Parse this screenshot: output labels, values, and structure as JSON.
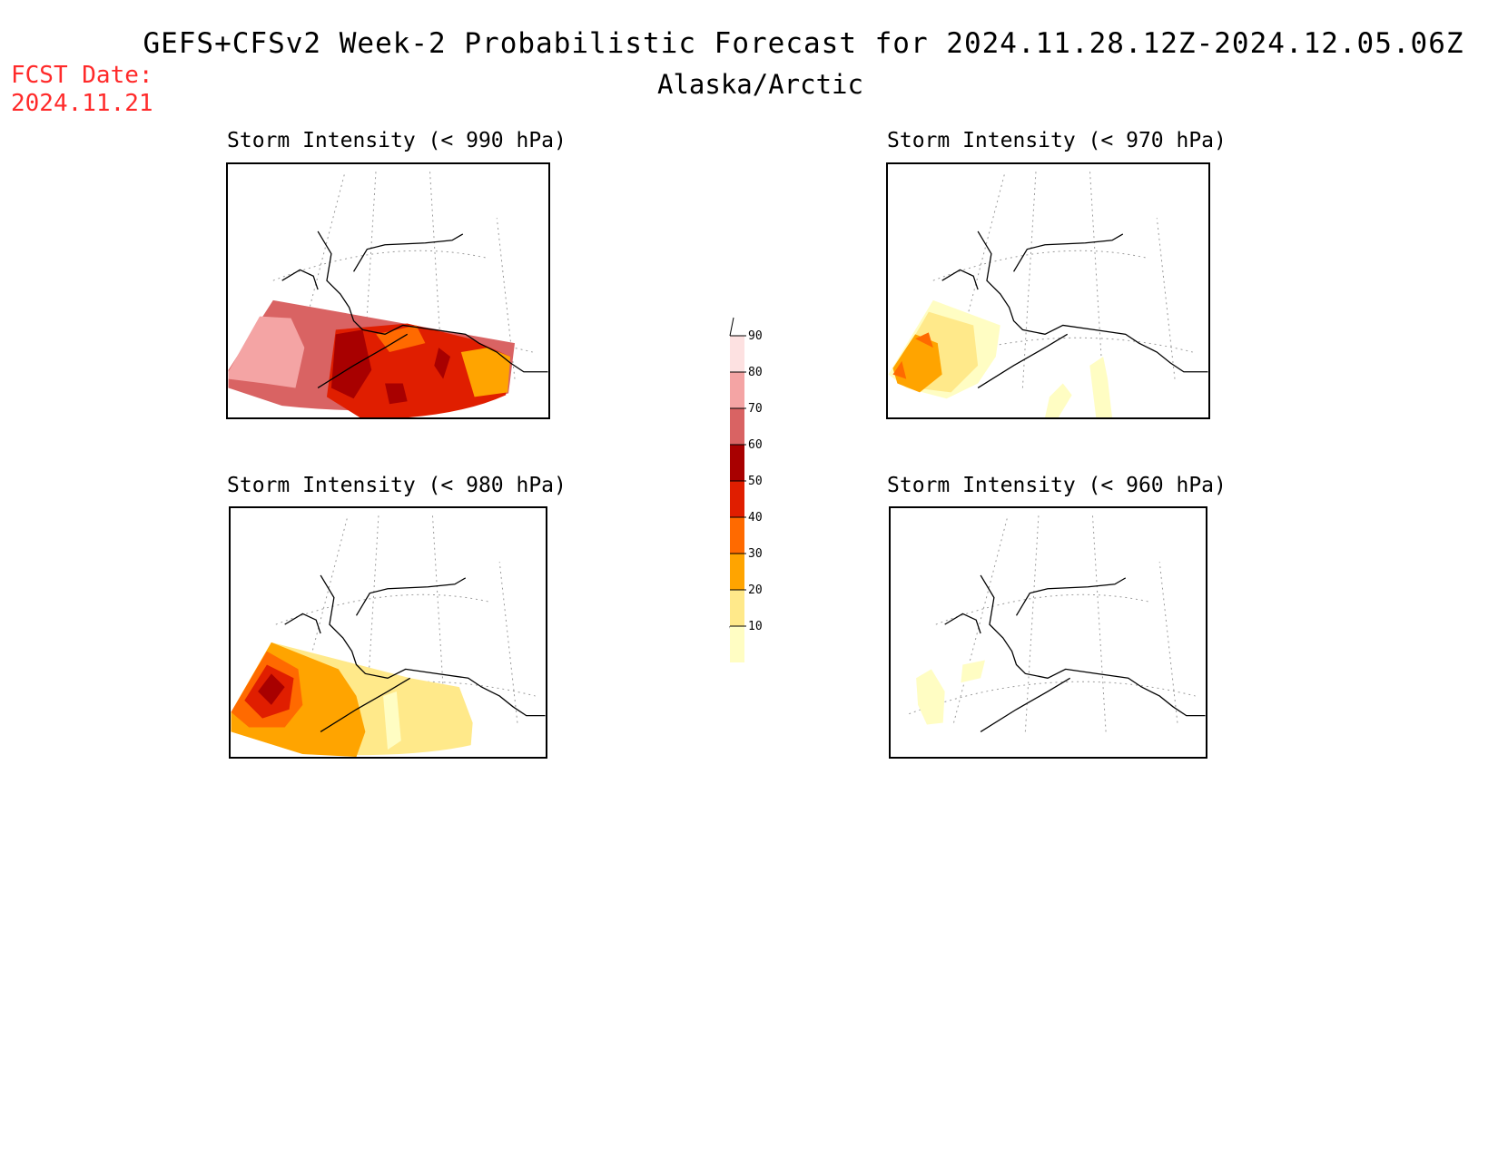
{
  "header": {
    "title": "GEFS+CFSv2 Week-2 Probabilistic Forecast for 2024.11.28.12Z-2024.12.05.06Z",
    "subtitle": "Alaska/Arctic",
    "fcst_label": "FCST Date:",
    "fcst_date": "2024.11.21"
  },
  "panels": [
    {
      "id": "p990",
      "title": "Storm Intensity (< 990 hPa)"
    },
    {
      "id": "p970",
      "title": "Storm Intensity (< 970 hPa)"
    },
    {
      "id": "p980",
      "title": "Storm Intensity (< 980 hPa)"
    },
    {
      "id": "p960",
      "title": "Storm Intensity (< 960 hPa)"
    }
  ],
  "legend": {
    "levels": [
      "10",
      "20",
      "30",
      "40",
      "50",
      "60",
      "70",
      "80",
      "90"
    ],
    "colors": [
      "#fffdc3",
      "#ffe98a",
      "#ffa400",
      "#ff6a00",
      "#e01e00",
      "#a80000",
      "#d96363",
      "#f4a4a4",
      "#fde1e1"
    ]
  }
}
